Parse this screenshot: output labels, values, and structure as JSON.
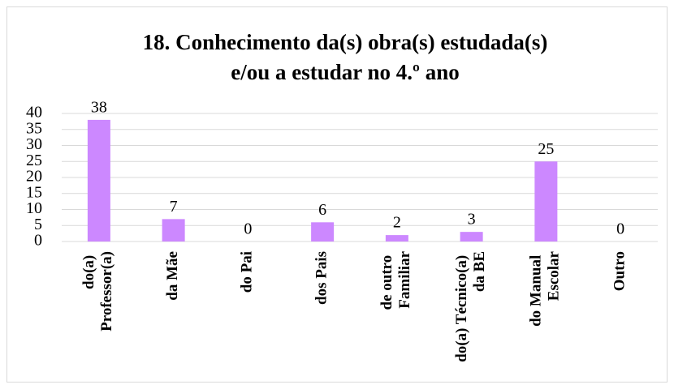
{
  "chart_data": {
    "type": "bar",
    "title": [
      "18. Conhecimento da(s) obra(s) estudada(s)",
      "e/ou a estudar no 4.º ano"
    ],
    "categories": [
      "do(a) Professor(a)",
      "da Mãe",
      "do Pai",
      "dos Pais",
      "de outro Familiar",
      "do(a) Técnico(a) da BE",
      "do Manual Escolar",
      "Outro"
    ],
    "values": [
      38,
      7,
      0,
      6,
      2,
      3,
      25,
      0
    ],
    "color": "#cc88ff",
    "ylim": [
      0,
      40
    ],
    "yticks": [
      0,
      5,
      10,
      15,
      20,
      25,
      30,
      35,
      40
    ],
    "grid": true
  }
}
